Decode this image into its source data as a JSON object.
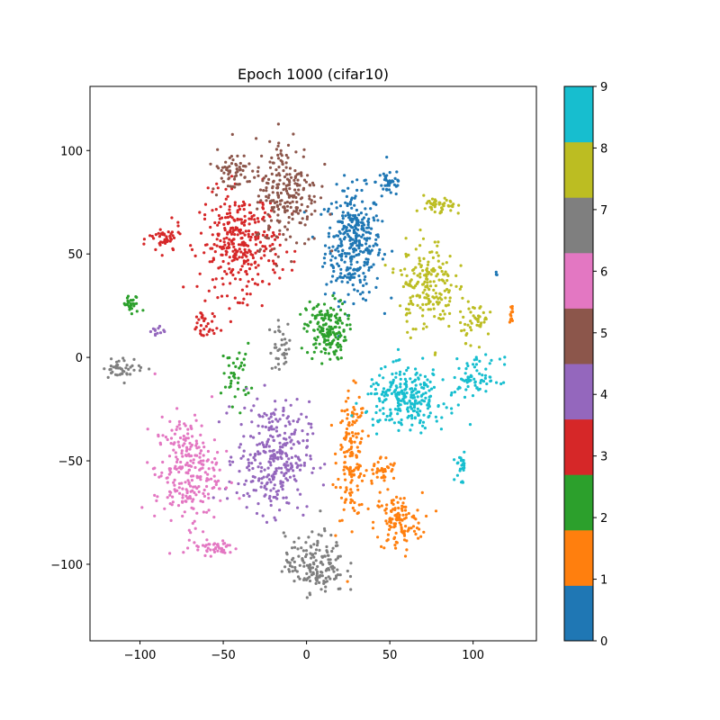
{
  "chart_data": {
    "type": "scatter",
    "title": "Epoch 1000 (cifar10)",
    "xlabel": "",
    "ylabel": "",
    "xlim": [
      -130,
      138
    ],
    "ylim": [
      -137,
      131
    ],
    "x_ticks": [
      -100,
      -50,
      0,
      50,
      100
    ],
    "y_ticks": [
      -100,
      -50,
      0,
      50,
      100
    ],
    "x_tick_labels": [
      "−100",
      "−50",
      "0",
      "50",
      "100"
    ],
    "y_tick_labels": [
      "−100",
      "−50",
      "0",
      "50",
      "100"
    ],
    "grid": false,
    "colorbar": {
      "range": [
        0,
        9
      ],
      "ticks": [
        0,
        1,
        2,
        3,
        4,
        5,
        6,
        7,
        8,
        9
      ],
      "tick_labels": [
        "0",
        "1",
        "2",
        "3",
        "4",
        "5",
        "6",
        "7",
        "8",
        "9"
      ],
      "colors": [
        "#1f77b4",
        "#ff7f0e",
        "#2ca02c",
        "#d62728",
        "#9467bd",
        "#8c564b",
        "#e377c2",
        "#7f7f7f",
        "#bcbd22",
        "#17becf"
      ]
    },
    "clusters": [
      {
        "label": 0,
        "center": [
          28,
          55
        ],
        "spread": [
          14,
          22
        ],
        "count": 340
      },
      {
        "label": 0,
        "center": [
          50,
          85
        ],
        "spread": [
          7,
          6
        ],
        "count": 40
      },
      {
        "label": 0,
        "center": [
          114,
          40
        ],
        "spread": [
          1,
          1
        ],
        "count": 3
      },
      {
        "label": 1,
        "center": [
          27,
          -48
        ],
        "spread": [
          7,
          25
        ],
        "count": 150
      },
      {
        "label": 1,
        "center": [
          55,
          -80
        ],
        "spread": [
          12,
          12
        ],
        "count": 120
      },
      {
        "label": 1,
        "center": [
          45,
          -55
        ],
        "spread": [
          8,
          6
        ],
        "count": 40
      },
      {
        "label": 1,
        "center": [
          123,
          22
        ],
        "spread": [
          1,
          5
        ],
        "count": 12
      },
      {
        "label": 2,
        "center": [
          12,
          13
        ],
        "spread": [
          10,
          12
        ],
        "count": 170
      },
      {
        "label": 2,
        "center": [
          -105,
          25
        ],
        "spread": [
          5,
          4
        ],
        "count": 30
      },
      {
        "label": 2,
        "center": [
          -42,
          -8
        ],
        "spread": [
          7,
          12
        ],
        "count": 40
      },
      {
        "label": 3,
        "center": [
          -40,
          55
        ],
        "spread": [
          20,
          20
        ],
        "count": 330
      },
      {
        "label": 3,
        "center": [
          -85,
          57
        ],
        "spread": [
          8,
          6
        ],
        "count": 45
      },
      {
        "label": 3,
        "center": [
          -62,
          15
        ],
        "spread": [
          6,
          8
        ],
        "count": 30
      },
      {
        "label": 4,
        "center": [
          -20,
          -48
        ],
        "spread": [
          18,
          22
        ],
        "count": 310
      },
      {
        "label": 4,
        "center": [
          -90,
          13
        ],
        "spread": [
          4,
          3
        ],
        "count": 12
      },
      {
        "label": 5,
        "center": [
          -12,
          80
        ],
        "spread": [
          16,
          22
        ],
        "count": 230
      },
      {
        "label": 5,
        "center": [
          -45,
          90
        ],
        "spread": [
          10,
          8
        ],
        "count": 60
      },
      {
        "label": 6,
        "center": [
          -72,
          -55
        ],
        "spread": [
          16,
          22
        ],
        "count": 260
      },
      {
        "label": 6,
        "center": [
          -55,
          -92
        ],
        "spread": [
          12,
          3
        ],
        "count": 45
      },
      {
        "label": 7,
        "center": [
          5,
          -100
        ],
        "spread": [
          15,
          12
        ],
        "count": 170
      },
      {
        "label": 7,
        "center": [
          -110,
          -5
        ],
        "spread": [
          10,
          4
        ],
        "count": 45
      },
      {
        "label": 7,
        "center": [
          -15,
          5
        ],
        "spread": [
          6,
          10
        ],
        "count": 35
      },
      {
        "label": 8,
        "center": [
          72,
          35
        ],
        "spread": [
          14,
          18
        ],
        "count": 190
      },
      {
        "label": 8,
        "center": [
          80,
          73
        ],
        "spread": [
          8,
          4
        ],
        "count": 45
      },
      {
        "label": 8,
        "center": [
          102,
          18
        ],
        "spread": [
          8,
          8
        ],
        "count": 45
      },
      {
        "label": 9,
        "center": [
          60,
          -20
        ],
        "spread": [
          20,
          12
        ],
        "count": 260
      },
      {
        "label": 9,
        "center": [
          102,
          -10
        ],
        "spread": [
          12,
          8
        ],
        "count": 70
      },
      {
        "label": 9,
        "center": [
          93,
          -52
        ],
        "spread": [
          3,
          6
        ],
        "count": 25
      }
    ]
  }
}
